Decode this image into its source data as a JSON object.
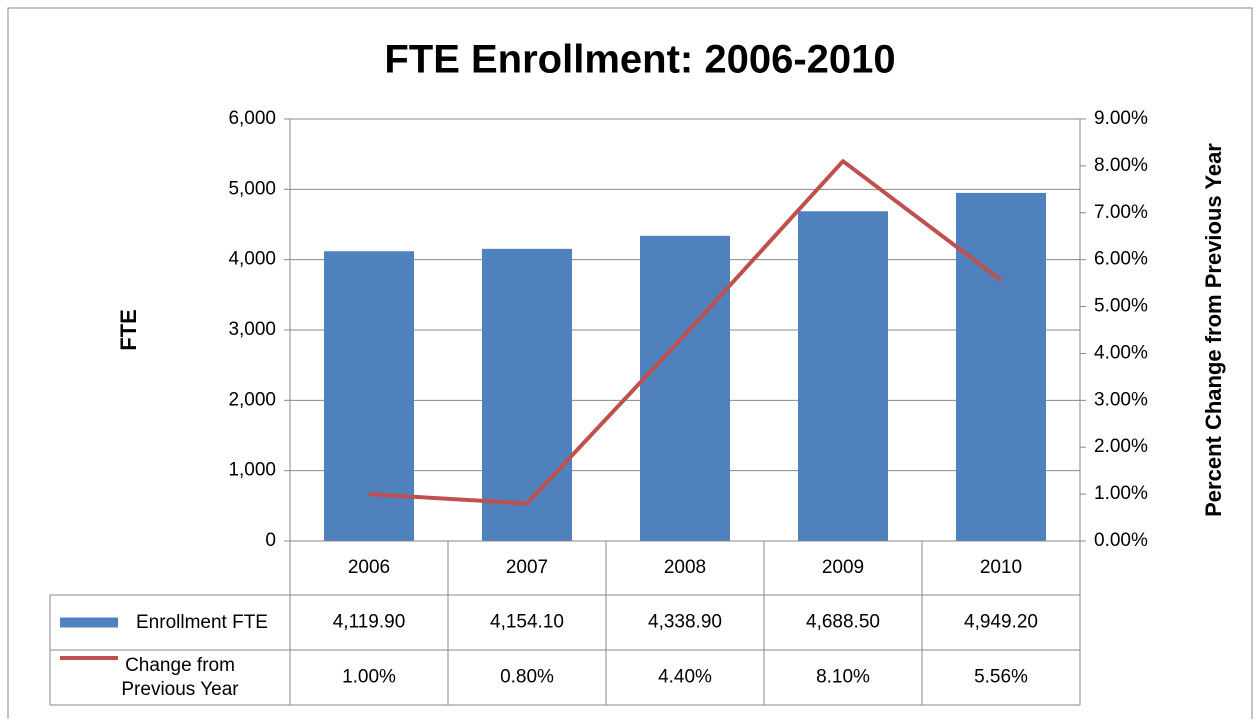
{
  "chart_data": {
    "type": "bar",
    "title": "FTE Enrollment: 2006-2010",
    "y_label": "FTE",
    "y2_label": "Percent Change from Previous Year",
    "categories": [
      "2006",
      "2007",
      "2008",
      "2009",
      "2010"
    ],
    "series": [
      {
        "name": "Enrollment FTE",
        "type": "bar",
        "color": "#4f81bd",
        "values": [
          4119.9,
          4154.1,
          4338.9,
          4688.5,
          4949.2
        ],
        "value_labels": [
          "4,119.90",
          "4,154.10",
          "4,338.90",
          "4,688.50",
          "4,949.20"
        ]
      },
      {
        "name": "Change from Previous Year",
        "type": "line",
        "axis": "y2",
        "color": "#c0504d",
        "values": [
          1.0,
          0.8,
          4.4,
          8.1,
          5.56
        ],
        "value_labels": [
          "1.00%",
          "0.80%",
          "4.40%",
          "8.10%",
          "5.56%"
        ]
      }
    ],
    "ylim": [
      0,
      6000
    ],
    "yticks": [
      0,
      {
        "value": 1000,
        "label": "1,000"
      },
      {
        "value": 2000,
        "label": "2,000"
      },
      {
        "value": 3000,
        "label": "3,000"
      },
      {
        "value": 4000,
        "label": "4,000"
      },
      {
        "value": 5000,
        "label": "5,000"
      },
      {
        "value": 6000,
        "label": "6,000"
      }
    ],
    "y2lim": [
      0,
      9
    ],
    "y2ticks": [
      {
        "value": 0,
        "label": "0.00%"
      },
      {
        "value": 1,
        "label": "1.00%"
      },
      {
        "value": 2,
        "label": "2.00%"
      },
      {
        "value": 3,
        "label": "3.00%"
      },
      {
        "value": 4,
        "label": "4.00%"
      },
      {
        "value": 5,
        "label": "5.00%"
      },
      {
        "value": 6,
        "label": "6.00%"
      },
      {
        "value": 7,
        "label": "7.00%"
      },
      {
        "value": 8,
        "label": "8.00%"
      },
      {
        "value": 9,
        "label": "9.00%"
      }
    ],
    "grid": true,
    "data_table": true
  }
}
